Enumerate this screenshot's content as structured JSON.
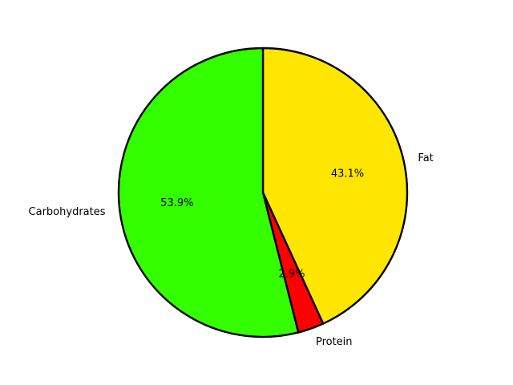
{
  "chart_data": {
    "type": "pie",
    "title": "",
    "start_angle_deg": 90,
    "direction": "clockwise",
    "slices": [
      {
        "label": "Fat",
        "value": 43.1,
        "pct_label": "43.1%",
        "color": "#ffe600"
      },
      {
        "label": "Protein",
        "value": 2.9,
        "pct_label": "2.9%",
        "color": "#ff0000"
      },
      {
        "label": "Carbohydrates",
        "value": 53.9,
        "pct_label": "53.9%",
        "color": "#33ff00"
      }
    ],
    "edge_color": "#000000"
  }
}
